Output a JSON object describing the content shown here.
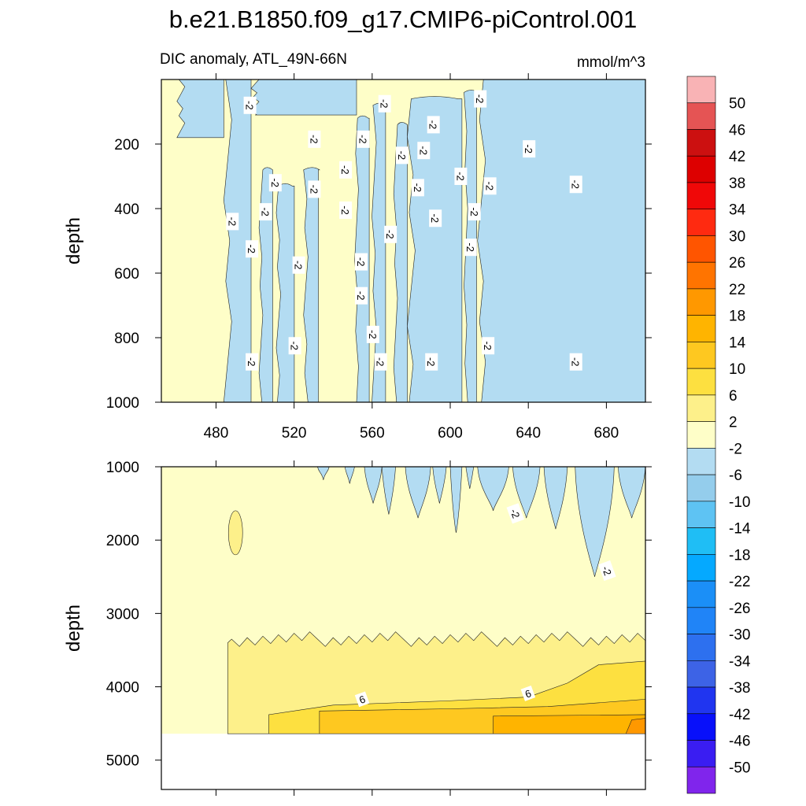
{
  "chart_data": {
    "type": "contour",
    "title": "b.e21.B1850.f09_g17.CMIP6-piControl.001",
    "subtitle_left": "DIC anomaly, ATL_49N-66N",
    "subtitle_right": "mmol/m^3",
    "colorbar": {
      "levels": [
        50,
        46,
        42,
        38,
        34,
        30,
        26,
        22,
        18,
        14,
        10,
        6,
        2,
        -2,
        -6,
        -10,
        -14,
        -18,
        -22,
        -26,
        -30,
        -34,
        -38,
        -42,
        -46,
        -50
      ],
      "colors": [
        "#f9b3b5",
        "#e55454",
        "#cc1010",
        "#dd0000",
        "#f00808",
        "#ff2a10",
        "#ff5500",
        "#ff7400",
        "#ff9800",
        "#ffb400",
        "#fec820",
        "#fde040",
        "#fdf08a",
        "#fefec8",
        "#b3dcf2",
        "#94cdec",
        "#5ec3f3",
        "#1fbef5",
        "#05a9ff",
        "#1b8ff7",
        "#2084f7",
        "#2d70ef",
        "#3d63e6",
        "#2035f0",
        "#0810fa",
        "#3a1df2",
        "#8025ec"
      ]
    },
    "panels": [
      {
        "name": "top",
        "xlim": [
          452,
          700
        ],
        "ylim": [
          1000,
          0
        ],
        "xticks": [
          480,
          520,
          560,
          600,
          640,
          680
        ],
        "yticks": [
          200,
          400,
          600,
          800,
          1000
        ],
        "ylabel": "depth",
        "blue_regions": [
          {
            "x": [
              486,
              500
            ],
            "zmin": 0,
            "zmax": 1000
          },
          {
            "x": [
              503,
              509
            ],
            "zmin": 280,
            "zmax": 1000
          },
          {
            "x": [
              512,
              519
            ],
            "zmin": 330,
            "zmax": 1000
          },
          {
            "x": [
              526,
              533
            ],
            "zmin": 280,
            "zmax": 1000
          },
          {
            "x": [
              552,
              558
            ],
            "zmin": 120,
            "zmax": 1000
          },
          {
            "x": [
              561,
              568
            ],
            "zmin": 80,
            "zmax": 1000
          },
          {
            "x": [
              572,
              578
            ],
            "zmin": 140,
            "zmax": 1000
          },
          {
            "x": [
              580,
              604
            ],
            "zmin": 60,
            "zmax": 1000
          },
          {
            "x": [
              608,
              614
            ],
            "zmin": 40,
            "zmax": 1000
          },
          {
            "x": [
              616,
              700
            ],
            "zmin": 0,
            "zmax": 1000
          },
          {
            "x": [
              462,
              486
            ],
            "zmin": 0,
            "zmax": 180
          },
          {
            "x": [
              500,
              552
            ],
            "zmin": 0,
            "zmax": 110
          }
        ],
        "contour_labels": [
          {
            "x": 497,
            "z": 80,
            "text": "-2"
          },
          {
            "x": 530,
            "z": 185,
            "text": "-2"
          },
          {
            "x": 566,
            "z": 75,
            "text": "-2"
          },
          {
            "x": 615,
            "z": 60,
            "text": "-2"
          },
          {
            "x": 555,
            "z": 185,
            "text": "-2"
          },
          {
            "x": 546,
            "z": 280,
            "text": "-2"
          },
          {
            "x": 575,
            "z": 235,
            "text": "-2"
          },
          {
            "x": 586,
            "z": 220,
            "text": "-2"
          },
          {
            "x": 591,
            "z": 140,
            "text": "-2"
          },
          {
            "x": 640,
            "z": 215,
            "text": "-2"
          },
          {
            "x": 605,
            "z": 300,
            "text": "-2"
          },
          {
            "x": 620,
            "z": 330,
            "text": "-2"
          },
          {
            "x": 583,
            "z": 335,
            "text": "-2"
          },
          {
            "x": 510,
            "z": 320,
            "text": "-2"
          },
          {
            "x": 530,
            "z": 340,
            "text": "-2"
          },
          {
            "x": 488,
            "z": 440,
            "text": "-2"
          },
          {
            "x": 505,
            "z": 410,
            "text": "-2"
          },
          {
            "x": 546,
            "z": 405,
            "text": "-2"
          },
          {
            "x": 569,
            "z": 480,
            "text": "-2"
          },
          {
            "x": 592,
            "z": 430,
            "text": "-2"
          },
          {
            "x": 612,
            "z": 410,
            "text": "-2"
          },
          {
            "x": 664,
            "z": 325,
            "text": "-2"
          },
          {
            "x": 498,
            "z": 525,
            "text": "-2"
          },
          {
            "x": 610,
            "z": 520,
            "text": "-2"
          },
          {
            "x": 522,
            "z": 575,
            "text": "-2"
          },
          {
            "x": 554,
            "z": 565,
            "text": "-2"
          },
          {
            "x": 554,
            "z": 670,
            "text": "-2"
          },
          {
            "x": 560,
            "z": 790,
            "text": "-2"
          },
          {
            "x": 520,
            "z": 825,
            "text": "-2"
          },
          {
            "x": 619,
            "z": 825,
            "text": "-2"
          },
          {
            "x": 498,
            "z": 875,
            "text": "-2"
          },
          {
            "x": 564,
            "z": 875,
            "text": "-2"
          },
          {
            "x": 590,
            "z": 875,
            "text": "-2"
          },
          {
            "x": 664,
            "z": 875,
            "text": "-2"
          }
        ]
      },
      {
        "name": "bottom",
        "xlim": [
          452,
          700
        ],
        "ylim": [
          5400,
          1000
        ],
        "yticks": [
          1000,
          2000,
          3000,
          4000,
          5000
        ],
        "ylabel": "depth",
        "data_bottom": 4640,
        "contour_labels": [
          {
            "x": 633,
            "z": 1640,
            "text": "-2"
          },
          {
            "x": 680,
            "z": 2420,
            "text": "-2"
          },
          {
            "x": 555,
            "z": 4180,
            "text": "6"
          },
          {
            "x": 640,
            "z": 4100,
            "text": "6"
          }
        ]
      }
    ]
  }
}
